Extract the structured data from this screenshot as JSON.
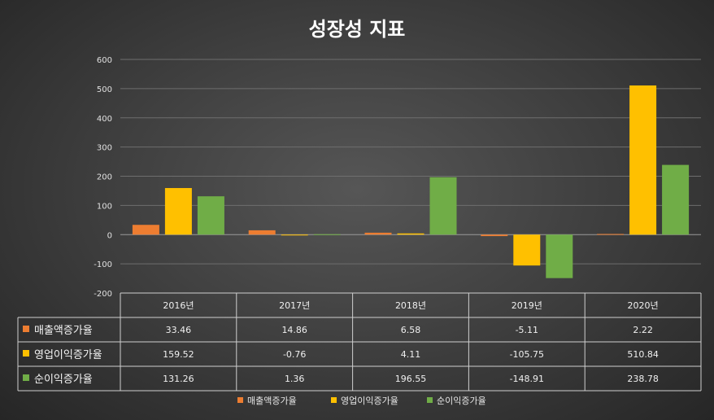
{
  "chart_data": {
    "type": "bar",
    "title": "성장성 지표",
    "categories": [
      "2016년",
      "2017년",
      "2018년",
      "2019년",
      "2020년"
    ],
    "series": [
      {
        "name": "매출액증가율",
        "color": "#ed7d31",
        "values": [
          33.46,
          14.86,
          6.58,
          -5.11,
          2.22
        ]
      },
      {
        "name": "영업이익증가율",
        "color": "#ffc000",
        "values": [
          159.52,
          -0.76,
          4.11,
          -105.75,
          510.84
        ]
      },
      {
        "name": "순이익증가율",
        "color": "#70ad47",
        "values": [
          131.26,
          1.36,
          196.55,
          -148.91,
          238.78
        ]
      }
    ],
    "ylim": [
      -200,
      600
    ],
    "yticks": [
      "600",
      "500",
      "400",
      "300",
      "200",
      "100",
      "0",
      "-100",
      "-200"
    ],
    "table": [
      [
        "33.46",
        "14.86",
        "6.58",
        "-5.11",
        "2.22"
      ],
      [
        "159.52",
        "-0.76",
        "4.11",
        "-105.75",
        "510.84"
      ],
      [
        "131.26",
        "1.36",
        "196.55",
        "-148.91",
        "238.78"
      ]
    ],
    "grid": true,
    "legend_position": "bottom"
  }
}
